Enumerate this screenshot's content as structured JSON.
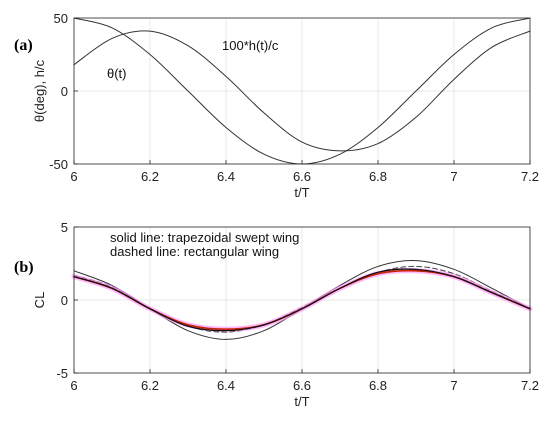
{
  "chart_data": [
    {
      "panel_label": "(a)",
      "type": "line",
      "xlabel": "t/T",
      "ylabel": "θ(deg), h/c",
      "xlim": [
        6,
        7.2
      ],
      "ylim": [
        -50,
        50
      ],
      "xticks": [
        "6",
        "6.2",
        "6.4",
        "6.6",
        "6.8",
        "7",
        "7.2"
      ],
      "yticks": [
        "-50",
        "0",
        "50"
      ],
      "grid": true,
      "annotations": [
        "100*h(t)/c",
        "θ(t)"
      ],
      "series": [
        {
          "name": "100*h(t)/c",
          "color": "#333333",
          "style": "solid",
          "x": [
            6.0,
            6.1,
            6.2,
            6.3,
            6.4,
            6.5,
            6.6,
            6.7,
            6.8,
            6.9,
            7.0,
            7.1,
            7.2
          ],
          "y": [
            50,
            43.3,
            25,
            0,
            -25,
            -43.3,
            -50,
            -43.3,
            -25,
            0,
            25,
            43.3,
            50
          ]
        },
        {
          "name": "θ(t)",
          "color": "#333333",
          "style": "solid",
          "x": [
            6.0,
            6.1,
            6.2,
            6.3,
            6.4,
            6.5,
            6.6,
            6.7,
            6.8,
            6.9,
            7.0,
            7.1,
            7.2
          ],
          "y": [
            18,
            36,
            41,
            31,
            10,
            -15,
            -35,
            -41,
            -36,
            -18,
            8,
            30,
            41
          ]
        }
      ]
    },
    {
      "panel_label": "(b)",
      "type": "line",
      "xlabel": "t/T",
      "ylabel": "CL",
      "xlim": [
        6,
        7.2
      ],
      "ylim": [
        -5,
        5
      ],
      "xticks": [
        "6",
        "6.2",
        "6.4",
        "6.6",
        "6.8",
        "7",
        "7.2"
      ],
      "yticks": [
        "-5",
        "0",
        "5"
      ],
      "grid": true,
      "annotations": [
        "solid line: trapezoidal swept wing",
        "dashed line: rectangular wing"
      ],
      "series": [
        {
          "color": "#333333",
          "style": "solid",
          "width": 1,
          "x": [
            6.0,
            6.1,
            6.2,
            6.3,
            6.4,
            6.5,
            6.6,
            6.7,
            6.8,
            6.9,
            7.0,
            7.1,
            7.2
          ],
          "y": [
            2.0,
            1.0,
            -0.6,
            -2.1,
            -2.7,
            -2.1,
            -0.6,
            1.0,
            2.3,
            2.7,
            2.1,
            0.8,
            -0.6
          ]
        },
        {
          "color": "#444444",
          "style": "dashed",
          "width": 1,
          "x": [
            6.0,
            6.1,
            6.2,
            6.3,
            6.4,
            6.5,
            6.6,
            6.7,
            6.8,
            6.9,
            7.0,
            7.1,
            7.2
          ],
          "y": [
            1.7,
            0.9,
            -0.6,
            -1.8,
            -2.2,
            -1.7,
            -0.5,
            0.8,
            1.9,
            2.3,
            1.8,
            0.6,
            -0.6
          ]
        },
        {
          "color": "#ff99ff",
          "style": "solid",
          "width": 5,
          "x": [
            6.0,
            6.1,
            6.2,
            6.3,
            6.4,
            6.5,
            6.6,
            6.7,
            6.8,
            6.9,
            7.0,
            7.1,
            7.2
          ],
          "y": [
            1.6,
            0.8,
            -0.6,
            -1.7,
            -2.0,
            -1.7,
            -0.6,
            0.8,
            1.8,
            2.0,
            1.6,
            0.5,
            -0.6
          ]
        },
        {
          "color": "#cc2200",
          "style": "solid",
          "width": 1.6,
          "x": [
            6.0,
            6.1,
            6.2,
            6.3,
            6.4,
            6.5,
            6.6,
            6.7,
            6.8,
            6.9,
            7.0,
            7.1,
            7.2
          ],
          "y": [
            1.6,
            0.8,
            -0.6,
            -1.7,
            -2.0,
            -1.7,
            -0.6,
            0.8,
            1.8,
            2.0,
            1.6,
            0.5,
            -0.6
          ]
        },
        {
          "color": "#111111",
          "style": "solid",
          "width": 1.3,
          "x": [
            6.0,
            6.1,
            6.2,
            6.3,
            6.4,
            6.5,
            6.6,
            6.7,
            6.8,
            6.9,
            7.0,
            7.1,
            7.2
          ],
          "y": [
            1.6,
            0.8,
            -0.6,
            -1.8,
            -2.1,
            -1.7,
            -0.6,
            0.8,
            1.9,
            2.1,
            1.6,
            0.5,
            -0.6
          ]
        }
      ]
    }
  ]
}
